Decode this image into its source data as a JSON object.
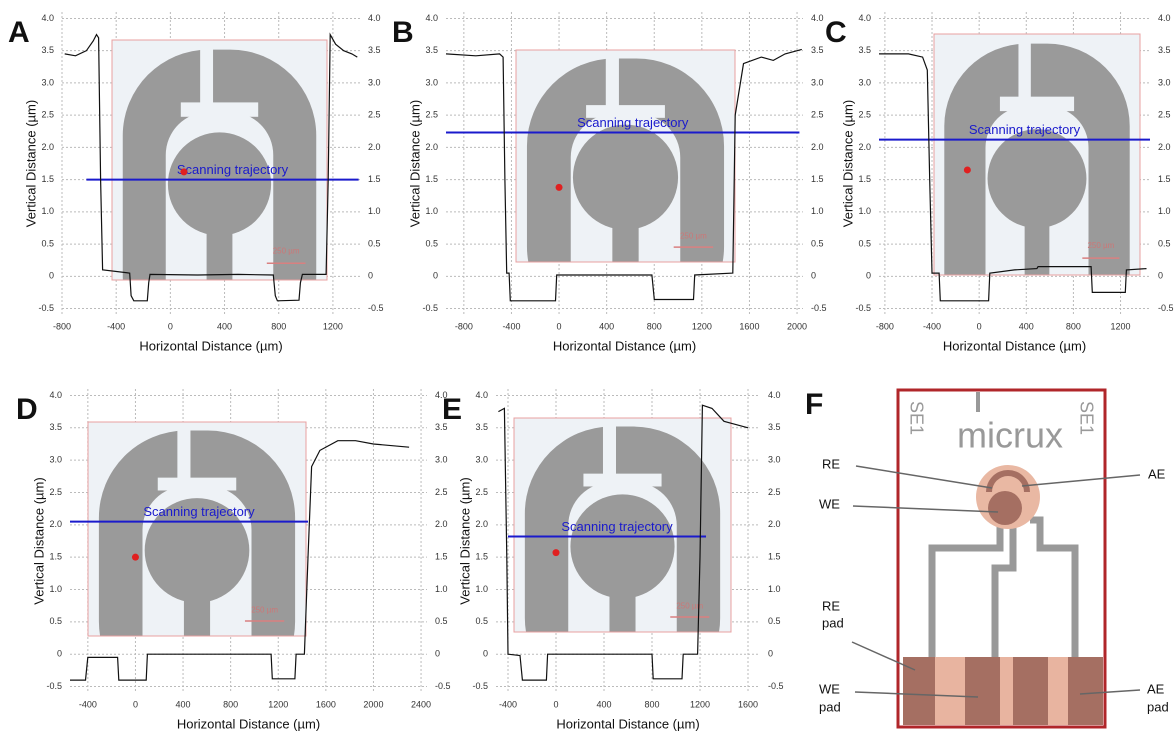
{
  "chart_data": [
    {
      "type": "line",
      "label": "A",
      "xlabel": "Horizontal Distance (µm)",
      "ylabel": "Vertical Distance (µm)",
      "xlim": [
        -800,
        1400
      ],
      "ylim": [
        -0.6,
        4.1
      ],
      "y2lim": [
        -0.6,
        4.1
      ],
      "xticks": [
        -800,
        -400,
        0,
        400,
        800,
        1200
      ],
      "yticks": [
        -0.5,
        0,
        0.5,
        {
          "value": 1,
          "label": "1.0"
        },
        1.5,
        {
          "value": 2,
          "label": "2.0"
        },
        2.5,
        {
          "value": 3,
          "label": "3.0"
        },
        3.5,
        {
          "value": 4,
          "label": "4.0"
        }
      ],
      "y2ticks": [
        -0.5,
        0,
        0.5,
        {
          "value": 1,
          "label": "1.0"
        },
        1.5,
        {
          "value": 2,
          "label": "2.0"
        },
        2.5,
        {
          "value": 3,
          "label": "3.0"
        },
        3.5,
        {
          "value": 4,
          "label": "4.0"
        }
      ],
      "grid": true,
      "scale_bar": "250 µm",
      "series": [
        {
          "color": "#111111",
          "x": [
            -780,
            -700,
            -620,
            -570,
            -545,
            -530,
            -515,
            -500,
            -300,
            -290,
            -270,
            -170,
            -160,
            -150,
            200,
            500,
            760,
            775,
            790,
            950,
            960,
            975,
            1150,
            1165,
            1180,
            1220,
            1280,
            1340,
            1380
          ],
          "values": [
            3.45,
            3.42,
            3.5,
            3.65,
            3.75,
            3.7,
            1.5,
            0.1,
            0.05,
            -0.3,
            -0.38,
            -0.38,
            -0.1,
            0.03,
            0.02,
            0.03,
            0.02,
            -0.3,
            -0.38,
            -0.37,
            -0.1,
            0.03,
            0.03,
            1.5,
            3.75,
            3.6,
            3.5,
            3.45,
            3.4
          ]
        }
      ],
      "annotation": {
        "text": "Scanning trajectory",
        "x": [
          -620,
          1390
        ],
        "y": 1.5,
        "color": "#1a1acc"
      },
      "marker": {
        "x": 100,
        "y": 1.62,
        "color": "#e02020"
      }
    },
    {
      "type": "line",
      "label": "B",
      "xlabel": "Horizontal Distance (µm)",
      "ylabel": "Vertical Distance (µm)",
      "xlim": [
        -950,
        2050
      ],
      "ylim": [
        -0.6,
        4.1
      ],
      "y2lim": [
        -0.6,
        4.1
      ],
      "xticks": [
        -800,
        -400,
        0,
        400,
        800,
        1200,
        1600,
        2000
      ],
      "yticks": [
        -0.5,
        0,
        0.5,
        {
          "value": 1,
          "label": "1.0"
        },
        1.5,
        {
          "value": 2,
          "label": "2.0"
        },
        2.5,
        {
          "value": 3,
          "label": "3.0"
        },
        3.5,
        {
          "value": 4,
          "label": "4.0"
        }
      ],
      "y2ticks": [
        -0.5,
        0,
        0.5,
        {
          "value": 1,
          "label": "1.0"
        },
        1.5,
        {
          "value": 2,
          "label": "2.0"
        },
        2.5,
        {
          "value": 3,
          "label": "3.0"
        },
        3.5,
        {
          "value": 4,
          "label": "4.0"
        }
      ],
      "grid": true,
      "scale_bar": "250 µm",
      "series": [
        {
          "color": "#111111",
          "x": [
            -950,
            -700,
            -500,
            -470,
            -455,
            -440,
            -420,
            -410,
            -30,
            -20,
            780,
            800,
            1130,
            1140,
            1460,
            1480,
            1550,
            1700,
            1800,
            1900,
            2040
          ],
          "values": [
            3.45,
            3.42,
            3.45,
            3.4,
            1.5,
            0.05,
            0.05,
            -0.38,
            -0.38,
            0.02,
            0.02,
            -0.36,
            -0.36,
            0.02,
            0.05,
            2.5,
            3.3,
            3.4,
            3.35,
            3.45,
            3.52
          ]
        }
      ],
      "annotation": {
        "text": "Scanning trajectory",
        "x": [
          -950,
          2020
        ],
        "y": 2.23,
        "color": "#1a1acc"
      },
      "marker": {
        "x": 0,
        "y": 1.38,
        "color": "#e02020"
      }
    },
    {
      "type": "line",
      "label": "C",
      "xlabel": "Horizontal Distance (µm)",
      "ylabel": "Vertical Distance (µm)",
      "xlim": [
        -850,
        1450
      ],
      "ylim": [
        -0.6,
        4.1
      ],
      "y2lim": [
        -0.6,
        4.1
      ],
      "xticks": [
        -800,
        -400,
        0,
        400,
        800,
        1200
      ],
      "yticks": [
        -0.5,
        0,
        0.5,
        {
          "value": 1,
          "label": "1.0"
        },
        1.5,
        {
          "value": 2,
          "label": "2.0"
        },
        2.5,
        {
          "value": 3,
          "label": "3.0"
        },
        3.5,
        {
          "value": 4,
          "label": "4.0"
        }
      ],
      "y2ticks": [
        -0.5,
        0,
        0.5,
        {
          "value": 1,
          "label": "1.0"
        },
        1.5,
        {
          "value": 2,
          "label": "2.0"
        },
        2.5,
        {
          "value": 3,
          "label": "3.0"
        },
        3.5,
        {
          "value": 4,
          "label": "4.0"
        }
      ],
      "grid": true,
      "scale_bar": "250 µm",
      "series": [
        {
          "color": "#111111",
          "x": [
            -850,
            -600,
            -480,
            -440,
            -420,
            -400,
            -340,
            -330,
            80,
            90,
            300,
            490,
            500,
            950,
            960,
            1240,
            1250,
            1420
          ],
          "values": [
            3.45,
            3.45,
            3.4,
            3.2,
            1.5,
            0.05,
            0.05,
            -0.38,
            -0.38,
            0.05,
            0.1,
            0.12,
            0.15,
            0.15,
            -0.25,
            -0.25,
            0.1,
            0.12
          ]
        }
      ],
      "annotation": {
        "text": "Scanning trajectory",
        "x": [
          -850,
          1450
        ],
        "y": 2.12,
        "color": "#1a1acc"
      },
      "marker": {
        "x": -100,
        "y": 1.65,
        "color": "#e02020"
      }
    },
    {
      "type": "line",
      "label": "D",
      "xlabel": "Horizontal Distance (µm)",
      "ylabel": "Vertical Distance (µm)",
      "xlim": [
        -550,
        2450
      ],
      "ylim": [
        -0.6,
        4.1
      ],
      "y2lim": [
        -0.6,
        4.1
      ],
      "xticks": [
        -400,
        0,
        400,
        800,
        1200,
        1600,
        2000,
        2400
      ],
      "yticks": [
        -0.5,
        0,
        0.5,
        {
          "value": 1,
          "label": "1.0"
        },
        1.5,
        {
          "value": 2,
          "label": "2.0"
        },
        2.5,
        {
          "value": 3,
          "label": "3.0"
        },
        3.5,
        {
          "value": 4,
          "label": "4.0"
        }
      ],
      "y2ticks": [
        -0.5,
        0,
        0.5,
        {
          "value": 1,
          "label": "1.0"
        },
        1.5,
        {
          "value": 2,
          "label": "2.0"
        },
        2.5,
        {
          "value": 3,
          "label": "3.0"
        },
        3.5,
        {
          "value": 4,
          "label": "4.0"
        }
      ],
      "grid": true,
      "scale_bar": "250 µm",
      "series": [
        {
          "color": "#111111",
          "x": [
            -550,
            -420,
            -400,
            -150,
            -140,
            90,
            100,
            1140,
            1150,
            1340,
            1350,
            1420,
            1450,
            1480,
            1550,
            1700,
            1850,
            2000,
            2300
          ],
          "values": [
            -0.4,
            -0.4,
            -0.05,
            -0.05,
            -0.4,
            -0.4,
            0,
            0,
            -0.38,
            -0.38,
            0,
            0,
            1.5,
            2.9,
            3.15,
            3.3,
            3.3,
            3.25,
            3.2
          ]
        }
      ],
      "annotation": {
        "text": "Scanning trajectory",
        "x": [
          -550,
          1450
        ],
        "y": 2.05,
        "color": "#1a1acc"
      },
      "marker": {
        "x": 0,
        "y": 1.5,
        "color": "#e02020"
      }
    },
    {
      "type": "line",
      "label": "E",
      "xlabel": "Horizontal Distance (µm)",
      "ylabel": "Vertical Distance (µm)",
      "xlim": [
        -500,
        1700
      ],
      "ylim": [
        -0.6,
        4.1
      ],
      "y2lim": [
        -0.6,
        4.1
      ],
      "xticks": [
        -400,
        0,
        400,
        800,
        1200,
        1600
      ],
      "yticks": [
        -0.5,
        0,
        0.5,
        {
          "value": 1,
          "label": "1.0"
        },
        1.5,
        {
          "value": 2,
          "label": "2.0"
        },
        2.5,
        {
          "value": 3,
          "label": "3.0"
        },
        3.5,
        {
          "value": 4,
          "label": "4.0"
        }
      ],
      "y2ticks": [
        -0.5,
        0,
        0.5,
        {
          "value": 1,
          "label": "1.0"
        },
        1.5,
        {
          "value": 2,
          "label": "2.0"
        },
        2.5,
        {
          "value": 3,
          "label": "3.0"
        },
        3.5,
        {
          "value": 4,
          "label": "4.0"
        }
      ],
      "grid": true,
      "scale_bar": "250 µm",
      "series": [
        {
          "color": "#111111",
          "x": [
            -480,
            -430,
            -410,
            -400,
            -300,
            -280,
            -80,
            -70,
            800,
            810,
            1050,
            1060,
            1180,
            1200,
            1220,
            1300,
            1400,
            1500,
            1600
          ],
          "values": [
            3.75,
            3.8,
            1.5,
            0,
            -0.02,
            -0.4,
            -0.4,
            0,
            0,
            -0.38,
            -0.38,
            0,
            0,
            1.5,
            3.85,
            3.8,
            3.6,
            3.55,
            3.5
          ]
        }
      ],
      "annotation": {
        "text": "Scanning trajectory",
        "x": [
          -400,
          1250
        ],
        "y": 1.82,
        "color": "#1a1acc"
      },
      "marker": {
        "x": 0,
        "y": 1.57,
        "color": "#e02020"
      }
    }
  ],
  "diagram": {
    "label": "F",
    "logo": "micrux",
    "side_left": "SE1",
    "side_right": "SE1",
    "re": "RE",
    "we": "WE",
    "ae": "AE",
    "re_pad": [
      "RE",
      "pad"
    ],
    "we_pad": [
      "WE",
      "pad"
    ],
    "ae_pad": [
      "AE",
      "pad"
    ]
  }
}
